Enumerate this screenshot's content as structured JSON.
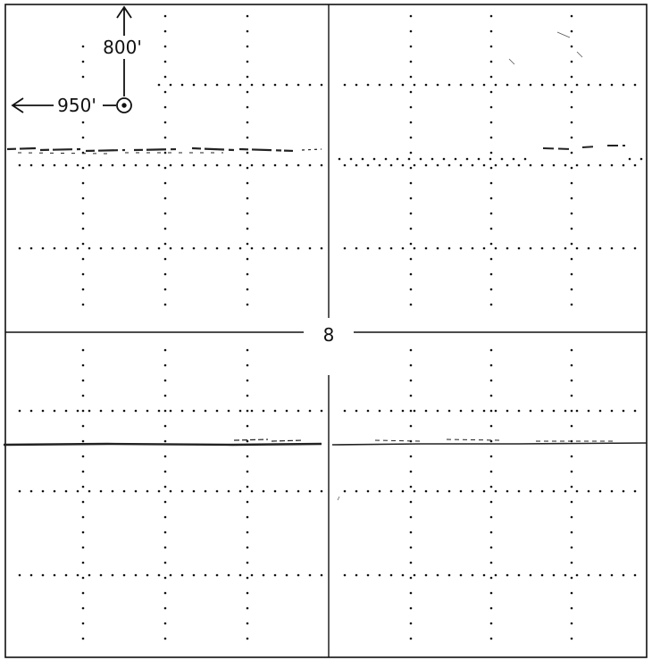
{
  "map": {
    "section_number": "8",
    "markers": [
      {
        "name": "north-distance",
        "label": "800'"
      },
      {
        "name": "west-distance",
        "label": "950'"
      }
    ],
    "colors": {
      "ink": "#111111",
      "background": "#ffffff"
    }
  }
}
